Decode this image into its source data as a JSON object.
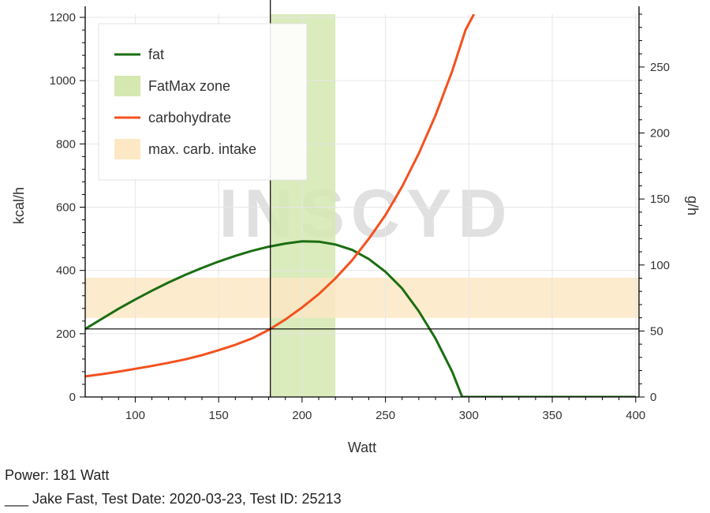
{
  "chart_data": {
    "type": "line",
    "title": "",
    "xlabel": "Watt",
    "ylabel": "kcal/h",
    "y2label": "g/h",
    "xlim": [
      70,
      402
    ],
    "ylim": [
      0,
      1210
    ],
    "y2lim": [
      0,
      290
    ],
    "x_ticks": [
      100,
      150,
      200,
      250,
      300,
      350,
      400
    ],
    "y_ticks": [
      0,
      200,
      400,
      600,
      800,
      1000,
      1200
    ],
    "y2_ticks": [
      0,
      50,
      100,
      150,
      200,
      250
    ],
    "grid": true,
    "legend_position": "top-left",
    "watermark": "INSCYD",
    "series": [
      {
        "name": "fat",
        "color": "#1b6e12",
        "x": [
          70,
          80,
          90,
          100,
          110,
          120,
          130,
          140,
          150,
          160,
          170,
          180,
          190,
          200,
          210,
          220,
          230,
          240,
          250,
          260,
          270,
          280,
          290,
          296,
          300,
          350,
          400
        ],
        "y": [
          215,
          247,
          279,
          308,
          336,
          362,
          386,
          408,
          428,
          446,
          462,
          475,
          485,
          492,
          491,
          482,
          465,
          436,
          396,
          343,
          271,
          185,
          80,
          0,
          0,
          0,
          0
        ]
      },
      {
        "name": "carbohydrate",
        "color": "#f4511e",
        "x": [
          70,
          80,
          90,
          100,
          110,
          120,
          130,
          140,
          150,
          160,
          170,
          180,
          190,
          200,
          210,
          220,
          230,
          240,
          250,
          260,
          270,
          280,
          290,
          298,
          303
        ],
        "y": [
          65,
          72,
          80,
          89,
          98,
          108,
          119,
          132,
          148,
          165,
          185,
          212,
          245,
          283,
          325,
          375,
          432,
          500,
          575,
          665,
          770,
          890,
          1030,
          1160,
          1210
        ]
      }
    ],
    "zones": [
      {
        "name": "FatMax zone",
        "x_from": 181,
        "x_to": 220,
        "color": "#d4e8b0"
      },
      {
        "name": "max. carb. intake",
        "y_from": 250,
        "y_to": 377,
        "color": "#fce8c4"
      }
    ],
    "crosshair": {
      "x": 181,
      "y": 215
    }
  },
  "info": {
    "power": "Power: 181 Watt",
    "test_line": "___ Jake Fast, Test Date: 2020-03-23, Test ID: 25213"
  }
}
